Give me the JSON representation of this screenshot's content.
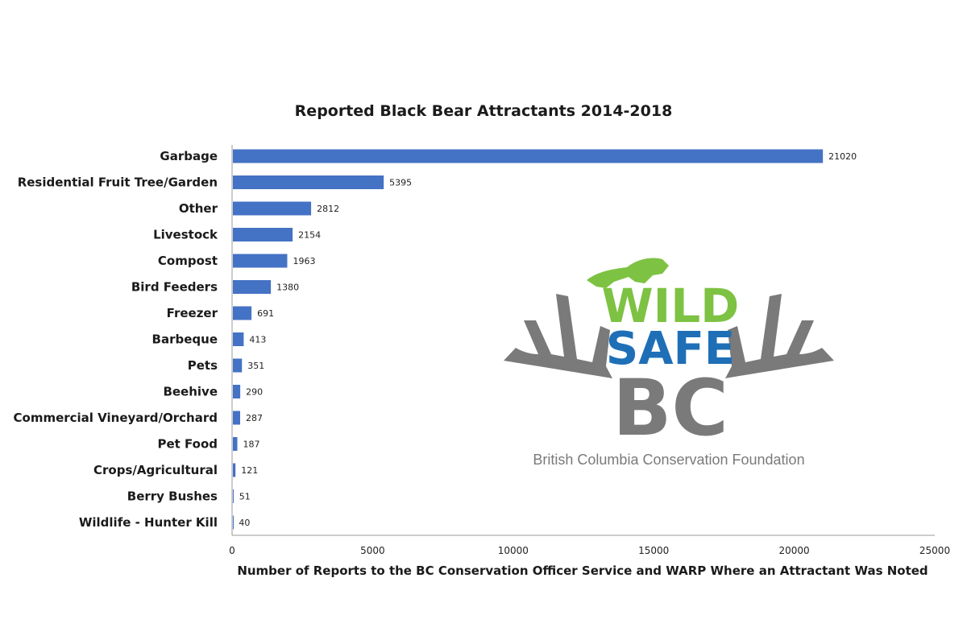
{
  "chart_data": {
    "type": "bar",
    "orientation": "horizontal",
    "title": "Reported Black Bear Attractants 2014-2018",
    "xlabel": "Number of Reports to the BC Conservation Officer Service and WARP Where an Attractant Was Noted",
    "ylabel": "",
    "xlim": [
      0,
      25000
    ],
    "xticks": [
      0,
      5000,
      10000,
      15000,
      20000,
      25000
    ],
    "grid": false,
    "bar_color": "#4472C4",
    "categories": [
      "Garbage",
      "Residential Fruit Tree/Garden",
      "Other",
      "Livestock",
      "Compost",
      "Bird Feeders",
      "Freezer",
      "Barbeque",
      "Pets",
      "Beehive",
      "Commercial Vineyard/Orchard",
      "Pet Food",
      "Crops/Agricultural",
      "Berry Bushes",
      "Wildlife - Hunter Kill"
    ],
    "values": [
      21020,
      5395,
      2812,
      2154,
      1963,
      1380,
      691,
      413,
      351,
      290,
      287,
      187,
      121,
      51,
      40
    ]
  },
  "logo": {
    "line1": "WILD",
    "line2": "SAFE",
    "line3": "BC",
    "caption": "British Columbia Conservation Foundation",
    "colors": {
      "green": "#7DC242",
      "blue": "#1F6FB7",
      "gray": "#7A7A7A"
    }
  }
}
